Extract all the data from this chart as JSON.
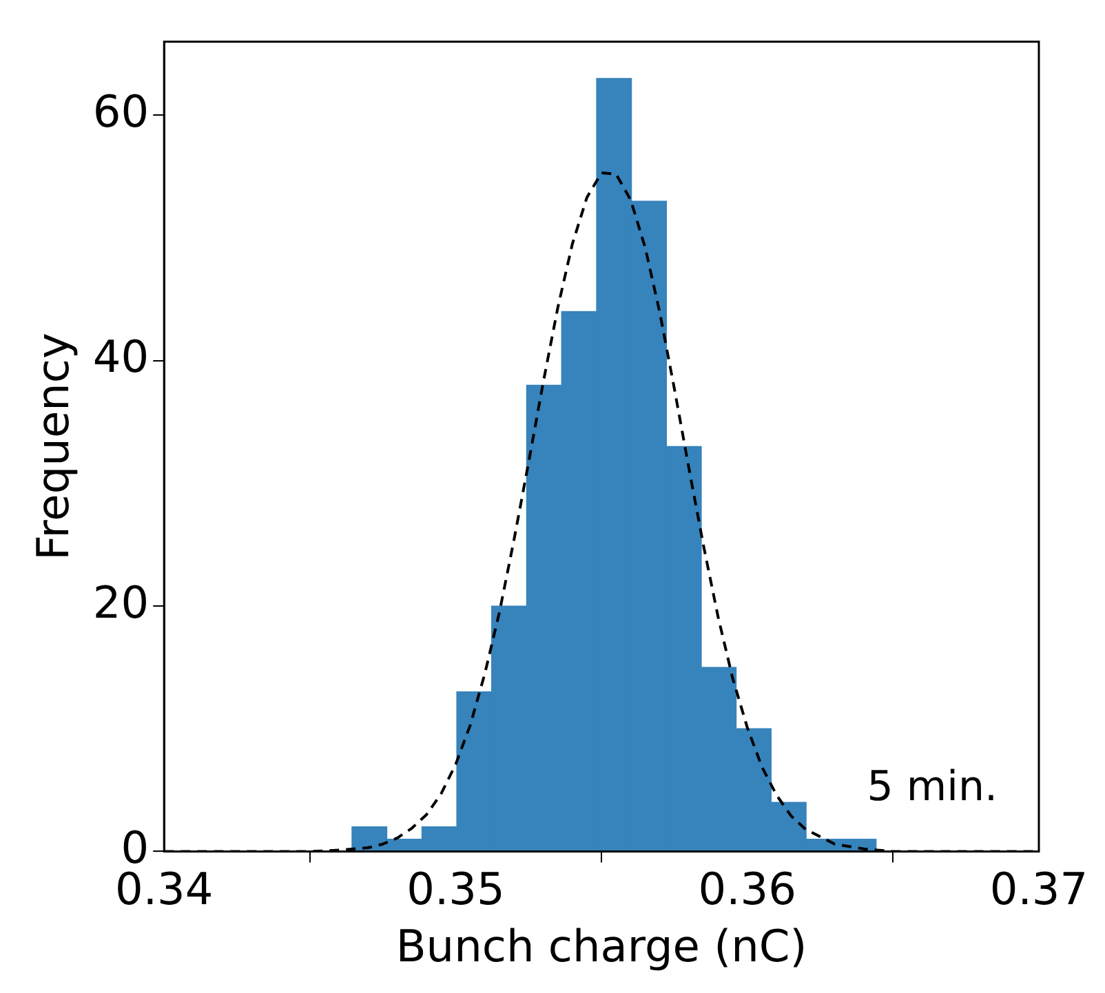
{
  "chart_data": {
    "type": "histogram",
    "xlabel": "Bunch charge (nC)",
    "ylabel": "Frequency",
    "bins": [
      0.34644,
      0.34764,
      0.34884,
      0.35004,
      0.35123,
      0.35243,
      0.35363,
      0.35483,
      0.35603,
      0.35723,
      0.35842,
      0.35962,
      0.36082,
      0.36202,
      0.36322,
      0.36442
    ],
    "values": [
      2,
      1,
      2,
      13,
      20,
      38,
      44,
      63,
      53,
      33,
      15,
      10,
      4,
      1,
      1
    ],
    "color": "#3783bb",
    "series": [
      {
        "type": "line",
        "color": "#000000",
        "line_style": "dashed",
        "marker": "none",
        "x": [
          0.34,
          0.345,
          0.346,
          0.347,
          0.3475,
          0.348,
          0.3485,
          0.349,
          0.3495,
          0.35,
          0.3505,
          0.351,
          0.3515,
          0.352,
          0.3525,
          0.353,
          0.3535,
          0.354,
          0.3545,
          0.355,
          0.3555,
          0.356,
          0.3565,
          0.357,
          0.3575,
          0.358,
          0.3585,
          0.359,
          0.3595,
          0.36,
          0.3605,
          0.361,
          0.3615,
          0.362,
          0.363,
          0.364,
          0.365,
          0.37
        ],
        "values": [
          0,
          0,
          0.1,
          0.3,
          0.6,
          1.1,
          1.9,
          3,
          4.7,
          7.1,
          10.3,
          14.5,
          19.5,
          25.4,
          31.7,
          38.2,
          44.3,
          49.5,
          53.3,
          55.3,
          55.2,
          53.1,
          49.2,
          43.9,
          37.7,
          31.2,
          24.9,
          19.1,
          14.1,
          10.1,
          6.9,
          4.6,
          2.9,
          1.8,
          0.6,
          0.2,
          0,
          0
        ]
      }
    ],
    "xlim": [
      0.34,
      0.37
    ],
    "xticks": [
      0.34,
      0.35,
      0.36,
      0.37
    ],
    "ylim": [
      0,
      66
    ],
    "yticks": [
      0,
      20,
      40,
      60
    ],
    "annotations": [
      "5 min."
    ]
  }
}
